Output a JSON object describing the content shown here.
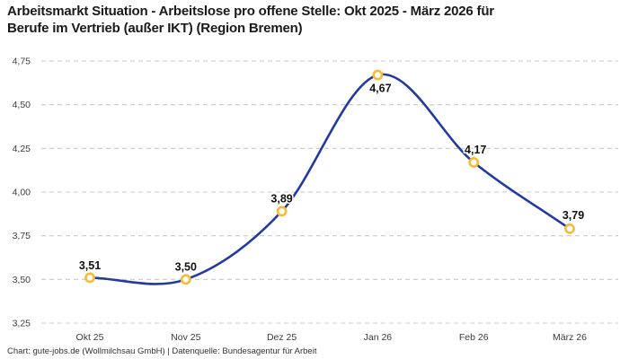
{
  "header": {
    "title_lines": [
      "Arbeitsmarkt Situation - Arbeitslose pro offene Stelle: Okt 2025 - März 2026 für",
      "Berufe im Vertrieb (außer IKT) (Region Bremen)"
    ]
  },
  "footer": {
    "credit": "Chart: gute-jobs.de (Wollmilchsau GmbH) | Datenquelle: Bundesagentur für Arbeit"
  },
  "chart_data": {
    "type": "line",
    "title": "Arbeitsmarkt Situation - Arbeitslose pro offene Stelle: Okt 2025 - März 2026 für Berufe im Vertrieb (außer IKT) (Region Bremen)",
    "categories": [
      "Okt 25",
      "Nov 25",
      "Dez 25",
      "Jan 26",
      "Feb 26",
      "März 26"
    ],
    "values": [
      3.51,
      3.5,
      3.89,
      4.67,
      4.17,
      3.79
    ],
    "point_labels": [
      "3,51",
      "3,50",
      "3,89",
      "4,67",
      "4,17",
      "3,79"
    ],
    "y_tick_values": [
      4.75,
      4.5,
      4.25,
      4.0,
      3.75,
      3.5,
      3.25
    ],
    "y_tick_labels": [
      "4,75",
      "4,50",
      "4,25",
      "4,00",
      "3,75",
      "3,50",
      "3,25"
    ],
    "ylim": [
      3.25,
      4.75
    ],
    "xlabel": "",
    "ylabel": "",
    "grid": "horizontal-dashed",
    "legend": false,
    "line_style": "smooth",
    "colors": {
      "line": "#233AA2",
      "marker_ring": "#F8BB33",
      "marker_fill": "#FFFFFF",
      "grid": "#C9C9C9",
      "title_text": "#1A1A1A",
      "axis_text": "#3C3C3C",
      "label_text": "#111111",
      "background": "#FFFFFF"
    }
  }
}
